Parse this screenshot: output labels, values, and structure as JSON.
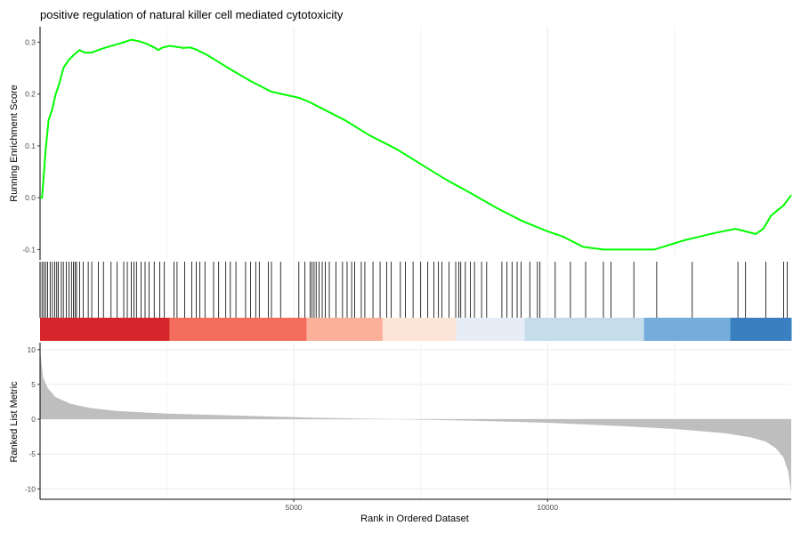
{
  "chart_data": {
    "type": "line",
    "title": "positive regulation of natural killer cell mediated cytotoxicity",
    "xlabel": "Rank in Ordered Dataset",
    "x_range": [
      1,
      14800
    ],
    "x_ticks": [
      5000,
      10000
    ],
    "panels": {
      "enrichment": {
        "ylabel": "Running Enrichment Score",
        "ylim": [
          -0.12,
          0.33
        ],
        "y_ticks": [
          -0.1,
          0.0,
          0.1,
          0.2,
          0.3
        ],
        "line_color": "#00ff00",
        "series": [
          {
            "x": [
              1,
              40,
              80,
              110,
              170,
              240,
              310,
              380,
              460,
              560,
              660,
              780,
              880,
              1020,
              1150,
              1300,
              1480,
              1650,
              1800,
              1950,
              2100,
              2250,
              2330,
              2420,
              2560,
              2700,
              2820,
              2960,
              3100,
              3300,
              3550,
              3800,
              4150,
              4550,
              4900,
              5100,
              5300,
              5600,
              6000,
              6500,
              7000,
              7500,
              8000,
              8500,
              9000,
              9500,
              10000,
              10300,
              10700,
              11100,
              11500,
              12100,
              12700,
              13000,
              13300,
              13700,
              13900,
              14100,
              14250,
              14400,
              14520,
              14650,
              14800
            ],
            "y": [
              0.0,
              0.0,
              0.05,
              0.09,
              0.15,
              0.17,
              0.2,
              0.22,
              0.25,
              0.265,
              0.275,
              0.285,
              0.28,
              0.28,
              0.285,
              0.29,
              0.295,
              0.3,
              0.305,
              0.302,
              0.297,
              0.29,
              0.285,
              0.29,
              0.293,
              0.291,
              0.289,
              0.29,
              0.285,
              0.275,
              0.26,
              0.245,
              0.225,
              0.205,
              0.197,
              0.193,
              0.185,
              0.17,
              0.15,
              0.12,
              0.095,
              0.065,
              0.035,
              0.008,
              -0.02,
              -0.045,
              -0.065,
              -0.075,
              -0.095,
              -0.1,
              -0.1,
              -0.1,
              -0.082,
              -0.075,
              -0.068,
              -0.06,
              -0.065,
              -0.07,
              -0.06,
              -0.035,
              -0.025,
              -0.015,
              0.005
            ]
          }
        ]
      },
      "gene_hits": {
        "positions": [
          40,
          75,
          110,
          150,
          200,
          245,
          290,
          330,
          360,
          420,
          460,
          520,
          570,
          620,
          660,
          690,
          720,
          780,
          850,
          950,
          1020,
          1150,
          1250,
          1400,
          1520,
          1650,
          1720,
          1800,
          1850,
          1900,
          1990,
          2070,
          2150,
          2250,
          2360,
          2450,
          2640,
          2700,
          2850,
          2990,
          3080,
          3150,
          3250,
          3420,
          3520,
          3660,
          3750,
          3860,
          4050,
          4150,
          4250,
          4320,
          4500,
          4560,
          4740,
          5100,
          5220,
          5320,
          5360,
          5400,
          5440,
          5500,
          5560,
          5620,
          5700,
          5830,
          5960,
          6050,
          6140,
          6200,
          6330,
          6400,
          6560,
          6700,
          6830,
          6920,
          7100,
          7200,
          7350,
          7500,
          7640,
          7760,
          7850,
          7920,
          8060,
          8190,
          8250,
          8290,
          8380,
          8480,
          8560,
          8700,
          8800,
          9100,
          9200,
          9300,
          9400,
          9480,
          9650,
          9800,
          9850,
          10150,
          10450,
          10750,
          11100,
          11250,
          11700,
          12150,
          12850,
          13750,
          13900,
          14300,
          14650,
          14720
        ],
        "color_bands": [
          {
            "from": 1,
            "to": 2550,
            "color": "#d7262b"
          },
          {
            "from": 2550,
            "to": 5250,
            "color": "#f46c5c"
          },
          {
            "from": 5250,
            "to": 6750,
            "color": "#fbb199"
          },
          {
            "from": 6750,
            "to": 8200,
            "color": "#fde4d8"
          },
          {
            "from": 8200,
            "to": 9550,
            "color": "#e6edf7"
          },
          {
            "from": 9550,
            "to": 11900,
            "color": "#c5dcea"
          },
          {
            "from": 11900,
            "to": 13600,
            "color": "#74addb"
          },
          {
            "from": 13600,
            "to": 14800,
            "color": "#3a7fbf"
          }
        ]
      },
      "ranked_metric": {
        "ylabel": "Ranked List Metric",
        "ylim": [
          -11.5,
          11
        ],
        "y_ticks": [
          -10,
          -5,
          0,
          5,
          10
        ],
        "fill_color": "#bebebe",
        "series": [
          {
            "x": [
              1,
              60,
              150,
              300,
              600,
              1000,
              1500,
              2500,
              4000,
              5500,
              7000,
              8500,
              10000,
              11500,
              12500,
              13500,
              14000,
              14300,
              14500,
              14650,
              14740,
              14780,
              14800
            ],
            "y": [
              10.0,
              6.0,
              4.5,
              3.2,
              2.2,
              1.6,
              1.2,
              0.8,
              0.5,
              0.2,
              0.0,
              -0.2,
              -0.5,
              -1.0,
              -1.4,
              -2.0,
              -2.6,
              -3.2,
              -4.2,
              -5.5,
              -7.5,
              -9.5,
              -10.8
            ]
          }
        ]
      }
    }
  }
}
